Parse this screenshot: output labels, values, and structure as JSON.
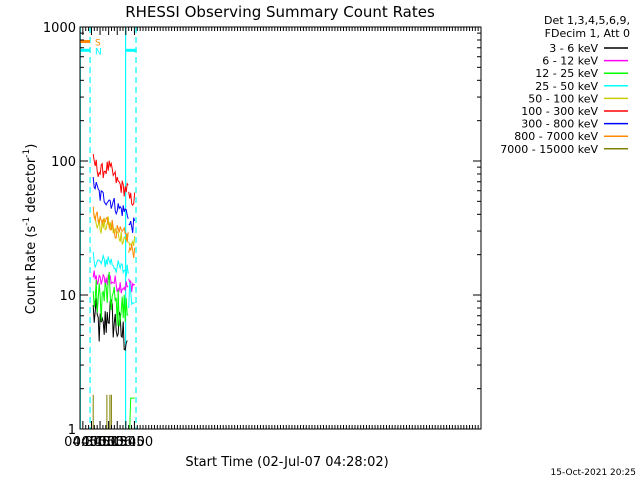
{
  "chart_data": {
    "type": "line",
    "title": "RHESSI Observing Summary Count Rates",
    "xlabel": "Start Time (02-Jul-07 04:28:02)",
    "ylabel_main": "Count Rate (s",
    "ylabel_sup1": "-1",
    "ylabel_mid": " detector",
    "ylabel_sup2": "-1",
    "ylabel_end": ")",
    "xlim_min": [
      265,
      965
    ],
    "ylim": [
      1,
      1000
    ],
    "yscale": "log",
    "xticks": [
      {
        "m": 270,
        "label": "04:30"
      },
      {
        "m": 285,
        "label": "04:45"
      },
      {
        "m": 300,
        "label": "05:00"
      },
      {
        "m": 315,
        "label": "05:15"
      },
      {
        "m": 330,
        "label": "05:30"
      },
      {
        "m": 345,
        "label": "05:45"
      },
      {
        "m": 360,
        "label": "06:00"
      }
    ],
    "yticks": [
      {
        "v": 1,
        "label": "1"
      },
      {
        "v": 10,
        "label": "10"
      },
      {
        "v": 100,
        "label": "100"
      },
      {
        "v": 1000,
        "label": "1000"
      }
    ],
    "legend": {
      "header1": "Det 1,3,4,5,6,9,",
      "header2": "FDecim 1, Att 0",
      "placement": "right"
    },
    "series": [
      {
        "name": "3 - 6 keV",
        "color": "#000000",
        "segments": [
          {
            "m": [
              288,
              300,
              305,
              315,
              322,
              340,
              349
            ],
            "v": [
              7.5,
              5.5,
              5.2,
              7.8,
              6.5,
              5,
              5
            ]
          }
        ]
      },
      {
        "name": "6 - 12 keV",
        "color": "#ff00ff",
        "segments": [
          {
            "m": [
              288,
              300,
              315,
              330,
              350
            ],
            "v": [
              13.5,
              12.5,
              13.5,
              12,
              11.5
            ]
          },
          {
            "m": [
              350,
              361
            ],
            "v": [
              12,
              12
            ]
          }
        ]
      },
      {
        "name": "12 - 25 keV",
        "color": "#00ff00",
        "segments": [
          {
            "m": [
              288,
              300,
              315,
              330,
              350
            ],
            "v": [
              9.5,
              9,
              10.5,
              8,
              7.5
            ]
          },
          {
            "m": [
              350,
              361
            ],
            "v": [
              1.7,
              1.7
            ]
          }
        ]
      },
      {
        "name": "25 - 50 keV",
        "color": "#00ffff",
        "segments": [
          {
            "m": [
              288,
              300,
              315,
              330,
              350
            ],
            "v": [
              19,
              17,
              18.5,
              16,
              15
            ]
          },
          {
            "m": [
              350,
              361
            ],
            "v": [
              11.5,
              11.5
            ]
          }
        ]
      },
      {
        "name": "50 - 100 keV",
        "color": "#cccc00",
        "segments": [
          {
            "m": [
              288,
              300,
              315,
              330,
              350
            ],
            "v": [
              38,
              32,
              34,
              28,
              26.5
            ]
          },
          {
            "m": [
              350,
              361
            ],
            "v": [
              24.5,
              24.5
            ]
          }
        ]
      },
      {
        "name": "100 - 300 keV",
        "color": "#ff0000",
        "segments": [
          {
            "m": [
              288,
              300,
              315,
              330,
              341,
              350
            ],
            "v": [
              100,
              82,
              90,
              70,
              62,
              62
            ]
          },
          {
            "m": [
              350,
              361
            ],
            "v": [
              52,
              52
            ]
          }
        ]
      },
      {
        "name": "300 - 800 keV",
        "color": "#0000ff",
        "segments": [
          {
            "m": [
              288,
              300,
              315,
              330,
              350
            ],
            "v": [
              70,
              55,
              52,
              45,
              41
            ]
          },
          {
            "m": [
              350,
              361
            ],
            "v": [
              33,
              33
            ]
          }
        ]
      },
      {
        "name": "800 - 7000 keV",
        "color": "#ff8800",
        "segments": [
          {
            "m": [
              288,
              300,
              315,
              330,
              350
            ],
            "v": [
              42,
              34,
              36,
              29,
              27
            ]
          },
          {
            "m": [
              350,
              361
            ],
            "v": [
              21.5,
              21.5
            ]
          }
        ]
      },
      {
        "name": "7000 - 15000 keV",
        "color": "#808000",
        "segments": [
          {
            "m": [
              288,
              288.5
            ],
            "v": [
              1,
              1.8
            ]
          },
          {
            "m": [
              312,
              322
            ],
            "v": [
              1,
              1.8
            ]
          }
        ]
      }
    ],
    "flags": [
      {
        "label": "S",
        "color": "#ff8800",
        "m0": 265,
        "m1": 282.5,
        "v": 780
      },
      {
        "label": "N",
        "color": "#00ffff",
        "m0": 265,
        "m1": 282.5,
        "v": 670
      },
      {
        "label": "",
        "color": "#00ffff",
        "m0": 344.5,
        "m1": 364,
        "v": 670
      }
    ],
    "vlines": [
      {
        "m": 265.5,
        "color": "#00ffff",
        "dash": false
      },
      {
        "m": 282.6,
        "color": "#00ffff",
        "dash": true
      },
      {
        "m": 344.6,
        "color": "#00ffff",
        "dash": false
      },
      {
        "m": 362.8,
        "color": "#00ffff",
        "dash": true
      }
    ],
    "footer_date": "15-Oct-2021 20:25"
  }
}
